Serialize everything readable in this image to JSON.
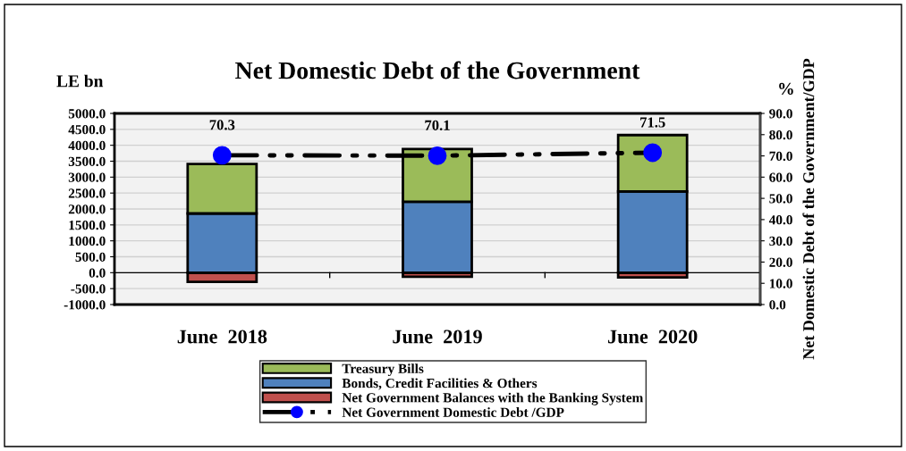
{
  "chart_data": {
    "type": "bar",
    "title": "Net Domestic Debt of the Government",
    "ylabel": "LE bn",
    "y2label": "Net Domestic Debt of the Government/GDP",
    "annotations": [
      "%"
    ],
    "categories": [
      "June  2018",
      "June  2019",
      "June  2020"
    ],
    "stacked": true,
    "series": [
      {
        "name": "Net Government Balances with the Banking System",
        "color": "#c0504d",
        "values": [
          -290,
          -130,
          -150
        ]
      },
      {
        "name": "Bonds, Credit Facilities & Others",
        "color": "#4f81bd",
        "values": [
          1860,
          2230,
          2550
        ]
      },
      {
        "name": "Treasury Bills",
        "color": "#9bbb59",
        "values": [
          1550,
          1650,
          1770
        ]
      },
      {
        "name": "Net Government Domestic Debt /GDP",
        "type": "line",
        "axis": "y2",
        "color": "#0000ff",
        "marker": "circle",
        "line_style": "dashed",
        "values": [
          70.3,
          70.1,
          71.5
        ],
        "value_labels": [
          "70.3",
          "70.1",
          "71.5"
        ]
      }
    ],
    "ylim": [
      -1000,
      5000
    ],
    "yticks": [
      {
        "value": -1000,
        "label": "-1000.0"
      },
      {
        "value": -500,
        "label": "-500.0"
      },
      {
        "value": 0,
        "label": "0.0"
      },
      {
        "value": 500,
        "label": "500.0"
      },
      {
        "value": 1000,
        "label": "1000.0"
      },
      {
        "value": 1500,
        "label": "1500.0"
      },
      {
        "value": 2000,
        "label": "2000.0"
      },
      {
        "value": 2500,
        "label": "2500.0"
      },
      {
        "value": 3000,
        "label": "3000.0"
      },
      {
        "value": 3500,
        "label": "3500.0"
      },
      {
        "value": 4000,
        "label": "4000.0"
      },
      {
        "value": 4500,
        "label": "4500.0"
      },
      {
        "value": 5000,
        "label": "5000.0"
      }
    ],
    "y2lim": [
      0,
      90
    ],
    "y2ticks": [
      {
        "value": 0,
        "label": "0.0"
      },
      {
        "value": 10,
        "label": "10.0"
      },
      {
        "value": 20,
        "label": "20.0"
      },
      {
        "value": 30,
        "label": "30.0"
      },
      {
        "value": 40,
        "label": "40.0"
      },
      {
        "value": 50,
        "label": "50.0"
      },
      {
        "value": 60,
        "label": "60.0"
      },
      {
        "value": 70,
        "label": "70.0"
      },
      {
        "value": 80,
        "label": "80.0"
      },
      {
        "value": 90,
        "label": "90.0"
      }
    ],
    "grid": "y",
    "legend": "bottom"
  }
}
